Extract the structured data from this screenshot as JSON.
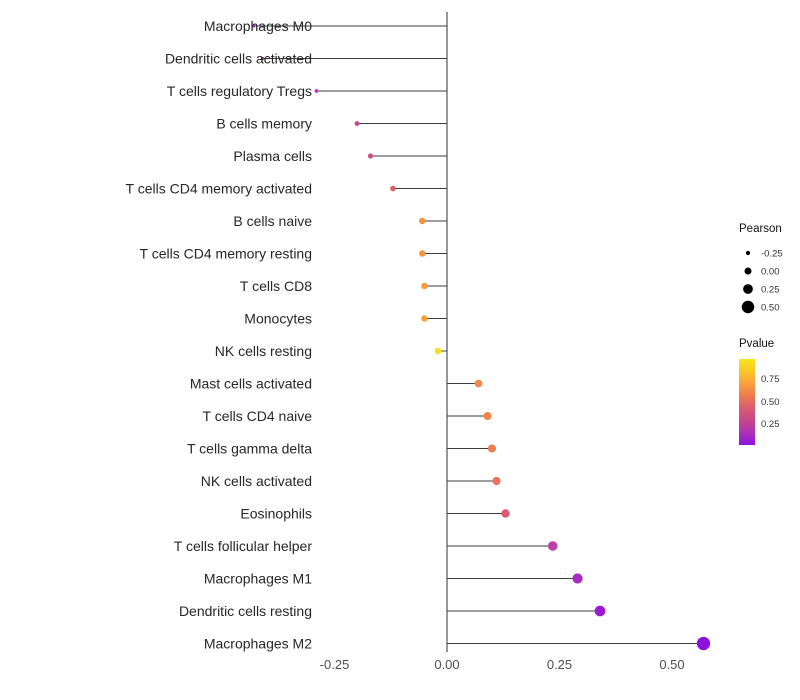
{
  "figure": {
    "background": "#FFFFFF"
  },
  "chart_data": {
    "type": "scatter",
    "subtype": "lollipop",
    "orientation": "horizontal",
    "title": "",
    "xlabel": "",
    "ylabel": "",
    "xlim": [
      -0.52,
      0.62
    ],
    "grid": false,
    "x_ticks": [
      -0.25,
      0,
      0.25,
      0.5
    ],
    "x_tick_labels": [
      "-0.25",
      "0.00",
      "0.25",
      "0.50"
    ],
    "categories": [
      "Macrophages M0",
      "Dendritic cells activated",
      "T cells regulatory Tregs",
      "B cells memory",
      "Plasma cells",
      "T cells CD4 memory activated",
      "B cells naive",
      "T cells CD4 memory resting",
      "T cells CD8",
      "Monocytes",
      "NK cells resting",
      "Mast cells activated",
      "T cells CD4 naive",
      "T cells gamma delta",
      "NK cells activated",
      "Eosinophils",
      "T cells follicular helper",
      "Macrophages M1",
      "Dendritic cells resting",
      "Macrophages M2"
    ],
    "points": [
      {
        "label": "Macrophages M0",
        "pearson": -0.43,
        "pvalue": 0.11,
        "color": "#9E22CA"
      },
      {
        "label": "Dendritic cells activated",
        "pearson": -0.41,
        "pvalue": 0.13,
        "color": "#A326C6"
      },
      {
        "label": "T cells regulatory Tregs",
        "pearson": -0.29,
        "pvalue": 0.28,
        "color": "#B138B3"
      },
      {
        "label": "B cells memory",
        "pearson": -0.2,
        "pvalue": 0.45,
        "color": "#C84C8C"
      },
      {
        "label": "Plasma cells",
        "pearson": -0.17,
        "pvalue": 0.5,
        "color": "#CE527F"
      },
      {
        "label": "T cells CD4 memory activated",
        "pearson": -0.12,
        "pvalue": 0.58,
        "color": "#DC5F6C"
      },
      {
        "label": "B cells naive",
        "pearson": -0.055,
        "pvalue": 0.76,
        "color": "#F5923F"
      },
      {
        "label": "T cells CD4 memory resting",
        "pearson": -0.055,
        "pvalue": 0.77,
        "color": "#F6953E"
      },
      {
        "label": "T cells CD8",
        "pearson": -0.05,
        "pvalue": 0.78,
        "color": "#F7983C"
      },
      {
        "label": "Monocytes",
        "pearson": -0.05,
        "pvalue": 0.8,
        "color": "#F89F38"
      },
      {
        "label": "NK cells resting",
        "pearson": -0.02,
        "pvalue": 0.97,
        "color": "#F2E41E"
      },
      {
        "label": "Mast cells activated",
        "pearson": 0.07,
        "pvalue": 0.72,
        "color": "#F28A48"
      },
      {
        "label": "T cells CD4 naive",
        "pearson": 0.09,
        "pvalue": 0.7,
        "color": "#F1854D"
      },
      {
        "label": "T cells gamma delta",
        "pearson": 0.1,
        "pvalue": 0.66,
        "color": "#EC7A57"
      },
      {
        "label": "NK cells activated",
        "pearson": 0.11,
        "pvalue": 0.64,
        "color": "#E9745D"
      },
      {
        "label": "Eosinophils",
        "pearson": 0.13,
        "pvalue": 0.56,
        "color": "#D95A72"
      },
      {
        "label": "T cells follicular helper",
        "pearson": 0.235,
        "pvalue": 0.33,
        "color": "#B840A8"
      },
      {
        "label": "Macrophages M1",
        "pearson": 0.29,
        "pvalue": 0.18,
        "color": "#A72CC0"
      },
      {
        "label": "Dendritic cells resting",
        "pearson": 0.34,
        "pvalue": 0.09,
        "color": "#9A1BD3"
      },
      {
        "label": "Macrophages M2",
        "pearson": 0.57,
        "pvalue": 0.02,
        "color": "#8E10DC"
      }
    ],
    "legend": {
      "position": "right",
      "size_title": "Pearson",
      "color_title": "Pvalue"
    },
    "size_legend": {
      "field": "pearson",
      "values": [
        -0.25,
        0,
        0.25,
        0.5
      ],
      "labels": [
        "-0.25",
        "0.00",
        "0.25",
        "0.50"
      ],
      "dot_color": "#000000"
    },
    "color_legend": {
      "field": "pvalue",
      "tick_labels": [
        "0.75",
        "0.50",
        "0.25"
      ],
      "gradient_top_to_bottom": [
        "#F2E51E",
        "#FBC628",
        "#F9A13C",
        "#EE7A52",
        "#DB5C70",
        "#C64689",
        "#AC32B5",
        "#8E12DB"
      ]
    },
    "stem_color": "#3C3C3C",
    "axis_line_color": "#2F2F2F"
  }
}
